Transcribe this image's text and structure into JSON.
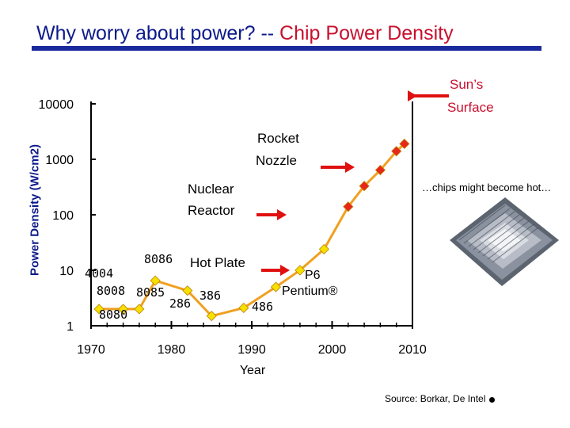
{
  "title": {
    "part1": "Why worry about power? -- ",
    "part2": "Chip Power Density"
  },
  "colors": {
    "line": "#f0a020",
    "marker": "#f5e000",
    "marker_hot": "#e8261a",
    "arrow": "#e01010",
    "title_blue": "#0c1a8a",
    "title_red": "#c8102e"
  },
  "chart_data": {
    "type": "line",
    "ylabel": "Power Density (W/cm2)",
    "xlabel": "Year",
    "y_scale": "log",
    "ylim": [
      1,
      10000
    ],
    "xlim": [
      1970,
      2010
    ],
    "y_ticks": [
      {
        "value": 1,
        "label": "1"
      },
      {
        "value": 10,
        "label": "10"
      },
      {
        "value": 100,
        "label": "100"
      },
      {
        "value": 1000,
        "label": "1000"
      },
      {
        "value": 10000,
        "label": "10000"
      }
    ],
    "x_ticks": [
      {
        "value": 1970,
        "label": "1970"
      },
      {
        "value": 1980,
        "label": "1980"
      },
      {
        "value": 1990,
        "label": "1990"
      },
      {
        "value": 2000,
        "label": "2000"
      },
      {
        "value": 2010,
        "label": "2010"
      }
    ],
    "series": [
      {
        "points": [
          {
            "x": 1971,
            "y": 2.0
          },
          {
            "x": 1974,
            "y": 2.0
          },
          {
            "x": 1976,
            "y": 2.0
          },
          {
            "x": 1978,
            "y": 6.5
          },
          {
            "x": 1982,
            "y": 4.3
          },
          {
            "x": 1985,
            "y": 1.5
          },
          {
            "x": 1989,
            "y": 2.1
          },
          {
            "x": 1993,
            "y": 5.0
          },
          {
            "x": 1996,
            "y": 10.0
          },
          {
            "x": 1999,
            "y": 24.0
          },
          {
            "x": 2002,
            "y": 140.0
          },
          {
            "x": 2004,
            "y": 330.0
          },
          {
            "x": 2006,
            "y": 640.0
          },
          {
            "x": 2008,
            "y": 1400.0
          },
          {
            "x": 2009,
            "y": 1900.0
          }
        ]
      }
    ],
    "point_labels": [
      "4004",
      "8008",
      "8080",
      "8085",
      "8086",
      "286",
      "386",
      "486",
      "P6",
      "Pentium®"
    ],
    "references": [
      {
        "name": "Hot Plate",
        "value": 10
      },
      {
        "name": "Nuclear Reactor",
        "value": 100
      },
      {
        "name": "Rocket Nozzle",
        "value": 1000
      },
      {
        "name": "Sun's Surface",
        "value": 10000
      }
    ],
    "grid": false
  },
  "annotations": {
    "hot_plate": "Hot Plate",
    "nuclear_line1": "Nuclear",
    "nuclear_line2": "Reactor",
    "rocket_line1": "Rocket",
    "rocket_line2": "Nozzle",
    "sun_line1": "Sun’s",
    "sun_line2": "Surface",
    "chips_hot": "…chips might become hot…"
  },
  "source": "Source: Borkar, De Intel"
}
